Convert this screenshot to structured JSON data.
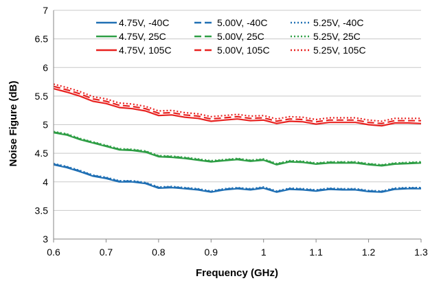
{
  "chart_data": {
    "type": "line",
    "title": "",
    "xlabel": "Frequency (GHz)",
    "ylabel": "Noise Figure (dB)",
    "xlim": [
      0.6,
      1.3
    ],
    "ylim": [
      3,
      7
    ],
    "xticks": [
      0.6,
      0.7,
      0.8,
      0.9,
      1.0,
      1.1,
      1.2,
      1.3
    ],
    "xtick_labels": [
      "0.6",
      "0.7",
      "0.8",
      "0.9",
      "1",
      "1.1",
      "1.2",
      "1.3"
    ],
    "yticks": [
      3,
      3.5,
      4,
      4.5,
      5,
      5.5,
      6,
      6.5,
      7
    ],
    "ytick_labels": [
      "3",
      "3.5",
      "4",
      "4.5",
      "5",
      "5.5",
      "6",
      "6.5",
      "7"
    ],
    "grid": "horizontal",
    "legend_position": "top",
    "x": [
      0.6,
      0.625,
      0.65,
      0.675,
      0.7,
      0.725,
      0.75,
      0.775,
      0.8,
      0.825,
      0.85,
      0.875,
      0.9,
      0.925,
      0.95,
      0.975,
      1.0,
      1.025,
      1.05,
      1.075,
      1.1,
      1.125,
      1.15,
      1.175,
      1.2,
      1.225,
      1.25,
      1.275,
      1.3
    ],
    "series": [
      {
        "name": "4.75V, -40C",
        "color": "#1F6FB4",
        "style": "solid",
        "values": [
          4.3,
          4.25,
          4.18,
          4.1,
          4.06,
          4.0,
          4.0,
          3.97,
          3.89,
          3.9,
          3.88,
          3.86,
          3.82,
          3.86,
          3.88,
          3.86,
          3.89,
          3.82,
          3.87,
          3.86,
          3.84,
          3.87,
          3.86,
          3.86,
          3.83,
          3.82,
          3.87,
          3.88,
          3.88
        ]
      },
      {
        "name": "5.00V, -40C",
        "color": "#1F6FB4",
        "style": "dashed",
        "values": [
          4.31,
          4.26,
          4.19,
          4.11,
          4.07,
          4.01,
          4.01,
          3.98,
          3.9,
          3.91,
          3.89,
          3.87,
          3.83,
          3.87,
          3.89,
          3.87,
          3.9,
          3.83,
          3.88,
          3.87,
          3.85,
          3.88,
          3.87,
          3.87,
          3.84,
          3.83,
          3.88,
          3.89,
          3.89
        ]
      },
      {
        "name": "5.25V, -40C",
        "color": "#1F6FB4",
        "style": "dotted",
        "values": [
          4.32,
          4.27,
          4.2,
          4.12,
          4.08,
          4.02,
          4.02,
          3.99,
          3.91,
          3.92,
          3.9,
          3.88,
          3.84,
          3.88,
          3.9,
          3.88,
          3.91,
          3.84,
          3.89,
          3.88,
          3.86,
          3.89,
          3.88,
          3.88,
          3.85,
          3.84,
          3.89,
          3.9,
          3.9
        ]
      },
      {
        "name": "4.75V, 25C",
        "color": "#2E9E45",
        "style": "solid",
        "values": [
          4.86,
          4.82,
          4.74,
          4.68,
          4.62,
          4.56,
          4.55,
          4.52,
          4.44,
          4.43,
          4.41,
          4.38,
          4.35,
          4.37,
          4.39,
          4.36,
          4.38,
          4.3,
          4.35,
          4.34,
          4.31,
          4.33,
          4.33,
          4.33,
          4.3,
          4.28,
          4.31,
          4.32,
          4.33
        ]
      },
      {
        "name": "5.00V, 25C",
        "color": "#2E9E45",
        "style": "dashed",
        "values": [
          4.87,
          4.83,
          4.75,
          4.69,
          4.63,
          4.57,
          4.56,
          4.53,
          4.45,
          4.44,
          4.42,
          4.39,
          4.36,
          4.38,
          4.4,
          4.37,
          4.39,
          4.31,
          4.36,
          4.35,
          4.32,
          4.34,
          4.34,
          4.34,
          4.31,
          4.29,
          4.32,
          4.33,
          4.34
        ]
      },
      {
        "name": "5.25V, 25C",
        "color": "#2E9E45",
        "style": "dotted",
        "values": [
          4.88,
          4.84,
          4.76,
          4.7,
          4.64,
          4.58,
          4.57,
          4.54,
          4.46,
          4.45,
          4.43,
          4.4,
          4.37,
          4.39,
          4.41,
          4.38,
          4.4,
          4.32,
          4.37,
          4.36,
          4.33,
          4.35,
          4.35,
          4.35,
          4.32,
          4.3,
          4.33,
          4.34,
          4.35
        ]
      },
      {
        "name": "4.75V, 105C",
        "color": "#E8201E",
        "style": "solid",
        "values": [
          5.63,
          5.57,
          5.5,
          5.41,
          5.37,
          5.3,
          5.28,
          5.24,
          5.16,
          5.17,
          5.13,
          5.11,
          5.06,
          5.08,
          5.1,
          5.07,
          5.08,
          5.02,
          5.06,
          5.05,
          5.01,
          5.04,
          5.04,
          5.04,
          5.0,
          4.98,
          5.03,
          5.03,
          5.02
        ]
      },
      {
        "name": "5.00V, 105C",
        "color": "#E8201E",
        "style": "dashed",
        "values": [
          5.67,
          5.61,
          5.54,
          5.45,
          5.41,
          5.34,
          5.32,
          5.28,
          5.2,
          5.21,
          5.17,
          5.15,
          5.1,
          5.12,
          5.14,
          5.11,
          5.12,
          5.06,
          5.1,
          5.09,
          5.05,
          5.08,
          5.08,
          5.08,
          5.04,
          5.02,
          5.07,
          5.07,
          5.07
        ]
      },
      {
        "name": "5.25V, 105C",
        "color": "#E8201E",
        "style": "dotted",
        "values": [
          5.71,
          5.65,
          5.58,
          5.49,
          5.45,
          5.38,
          5.36,
          5.32,
          5.24,
          5.25,
          5.21,
          5.19,
          5.14,
          5.16,
          5.18,
          5.15,
          5.16,
          5.1,
          5.14,
          5.13,
          5.09,
          5.12,
          5.12,
          5.12,
          5.08,
          5.06,
          5.11,
          5.11,
          5.11
        ]
      }
    ]
  }
}
